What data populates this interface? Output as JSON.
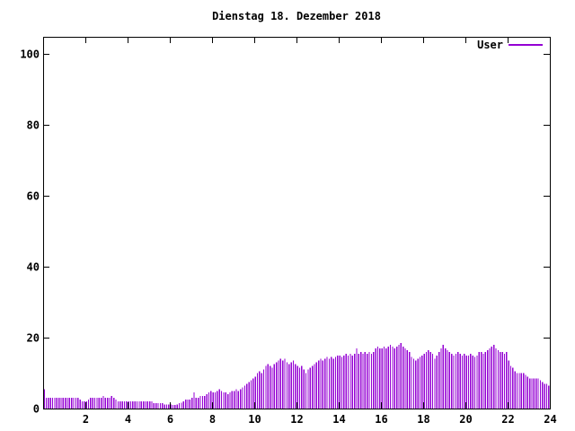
{
  "window": {
    "title": "Dienstag 18. Dezember 2018"
  },
  "legend": {
    "label": "User"
  },
  "colors": {
    "bars": "#9400D3",
    "axis": "#000000",
    "background": "#ffffff",
    "text": "#000000"
  },
  "chart_data": {
    "type": "bar",
    "title": "Dienstag 18. Dezember 2018",
    "xlabel": "",
    "ylabel": "",
    "xlim": [
      0,
      24
    ],
    "ylim": [
      0,
      105
    ],
    "x_tick_labels": [
      "2",
      "4",
      "6",
      "8",
      "10",
      "12",
      "14",
      "16",
      "18",
      "20",
      "22",
      "24"
    ],
    "x_tick_values": [
      2,
      4,
      6,
      8,
      10,
      12,
      14,
      16,
      18,
      20,
      22,
      24
    ],
    "y_tick_labels": [
      "0",
      "20",
      "40",
      "60",
      "80",
      "100"
    ],
    "y_tick_values": [
      0,
      20,
      40,
      60,
      80,
      100
    ],
    "grid": false,
    "legend_position": "top-right",
    "interval_minutes": 6,
    "series": [
      {
        "name": "User",
        "color": "#9400D3",
        "values": [
          5.5,
          3,
          3,
          3,
          3,
          3,
          3,
          3,
          3,
          3,
          3,
          3,
          3,
          3,
          3,
          3,
          3,
          2.5,
          2,
          2,
          2,
          2.5,
          3,
          3,
          3,
          3,
          3,
          3,
          3.5,
          3,
          3,
          3,
          3.5,
          3,
          2.5,
          2,
          2,
          2,
          2,
          2,
          2,
          2,
          2,
          2,
          2,
          2,
          2,
          2,
          2,
          2,
          2,
          2,
          1.5,
          1.5,
          1.5,
          1.5,
          1.5,
          1.2,
          1.2,
          1.2,
          1.2,
          1,
          1,
          1.2,
          1.5,
          1.7,
          2,
          2.5,
          2.5,
          2.5,
          3,
          4.5,
          3,
          3,
          3.5,
          3.5,
          3.5,
          4,
          4.5,
          5,
          4.5,
          4.5,
          5,
          5.5,
          5,
          4.5,
          4.5,
          4,
          4.5,
          5,
          5,
          5.5,
          5,
          5.5,
          6,
          6.5,
          7,
          7.5,
          8,
          8.5,
          9,
          10,
          10.5,
          10,
          11,
          12,
          12.5,
          12,
          11.5,
          12.5,
          13,
          13.5,
          14,
          13.5,
          14,
          13,
          12.5,
          13,
          13.5,
          12.5,
          12,
          11.5,
          12,
          11,
          10,
          11,
          11.5,
          12,
          12.5,
          13,
          13.5,
          14,
          13.5,
          14,
          14.5,
          14,
          14.5,
          14,
          14.5,
          15,
          15,
          14.5,
          15,
          15.5,
          15,
          15.5,
          15,
          15.5,
          17,
          15.5,
          16,
          15.5,
          16,
          15.5,
          16,
          15.5,
          16,
          17,
          17.5,
          17,
          17,
          17.5,
          17,
          17.5,
          18,
          17.5,
          17,
          17.5,
          18,
          18.5,
          17.5,
          17,
          16.5,
          16,
          14.5,
          14,
          13.5,
          14,
          14.5,
          15,
          15.5,
          16,
          16.5,
          16,
          15.5,
          14,
          15,
          16,
          17,
          18,
          17,
          16.5,
          16,
          15.5,
          15,
          15.5,
          16,
          15.5,
          15,
          15.5,
          15,
          15,
          15.5,
          15,
          14.5,
          15,
          16,
          16,
          15.5,
          16,
          16.5,
          17,
          17.5,
          18,
          17,
          16.5,
          16,
          16,
          15.5,
          16,
          13.5,
          12,
          11.5,
          10.5,
          10,
          10,
          10,
          10,
          9.5,
          9,
          8.5,
          8.5,
          8.5,
          8.5,
          8.5,
          8,
          7.5,
          7,
          7,
          6.5
        ]
      }
    ]
  }
}
